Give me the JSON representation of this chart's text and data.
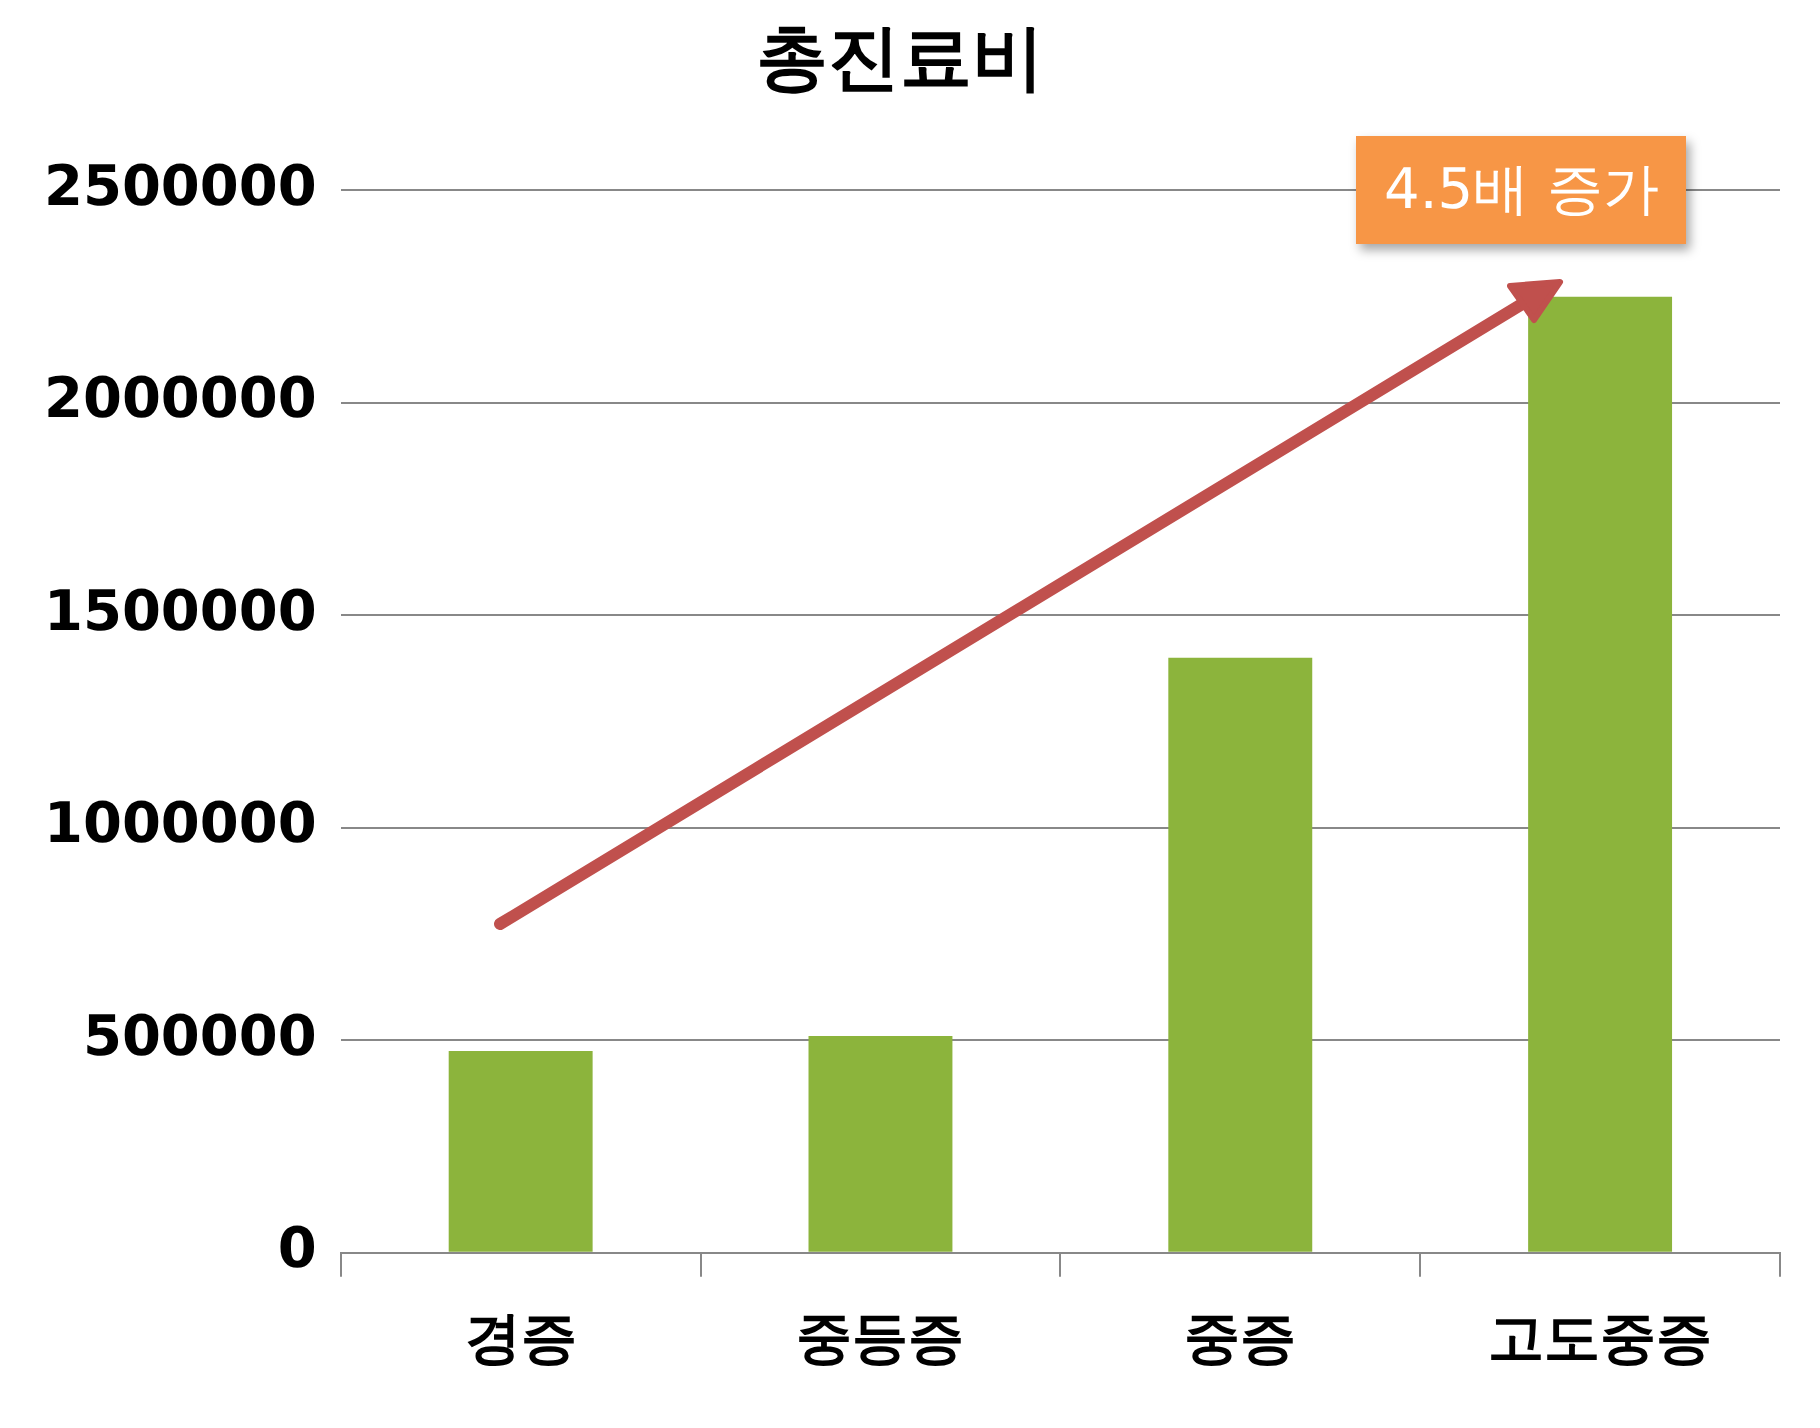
{
  "chart_data": {
    "type": "bar",
    "title": "총진료비",
    "categories": [
      "경증",
      "중등증",
      "중증",
      "고도중증"
    ],
    "values": [
      475000,
      510000,
      1400000,
      2250000
    ],
    "color": "#8cb43c",
    "ylim": [
      0,
      2500000
    ],
    "yticks": [
      0,
      500000,
      1000000,
      1500000,
      2000000,
      2500000
    ],
    "grid": "y",
    "legend": false,
    "annotations": [
      "4.5배 증가"
    ]
  }
}
